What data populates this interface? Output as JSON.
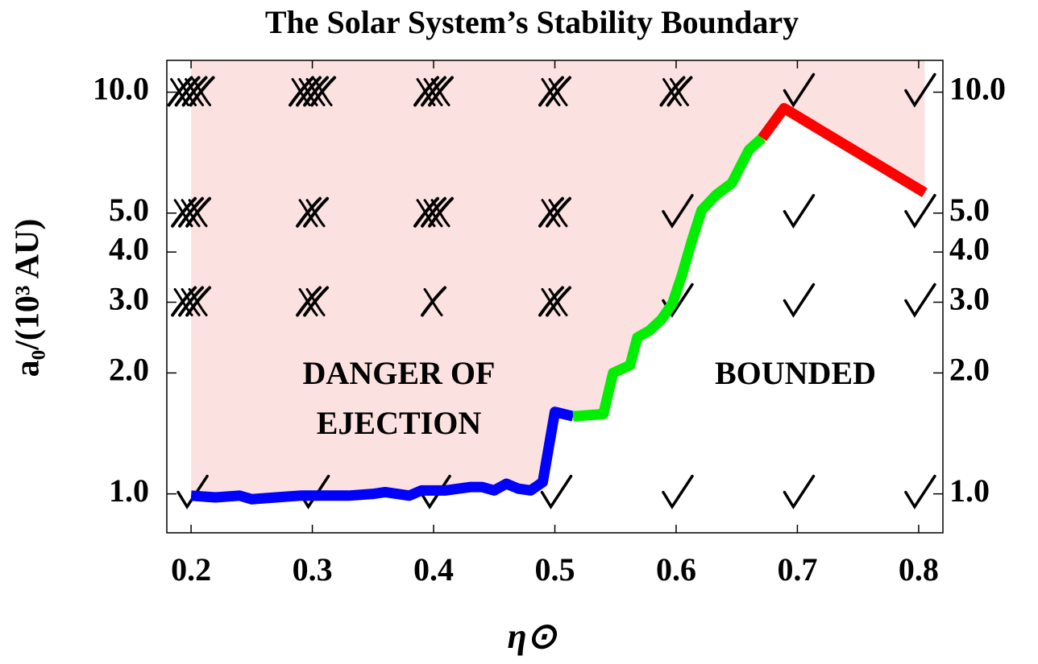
{
  "chart_data": {
    "type": "line",
    "title": "The Solar System’s Stability Boundary",
    "xlabel": "η⊙",
    "ylabel": "a₀/(10³ AU)",
    "ylog": true,
    "xlim": [
      0.18,
      0.82
    ],
    "ylim": [
      0.8,
      12
    ],
    "xticks": [
      0.2,
      0.3,
      0.4,
      0.5,
      0.6,
      0.7,
      0.8
    ],
    "yticks": [
      {
        "value": 1,
        "label": "1.0"
      },
      {
        "value": 2,
        "label": "2.0"
      },
      {
        "value": 3,
        "label": "3.0"
      },
      {
        "value": 4,
        "label": "4.0"
      },
      {
        "value": 5,
        "label": "5.0"
      },
      {
        "value": 10,
        "label": "10.0"
      }
    ],
    "region_color": "#fce1e1",
    "series": [
      {
        "color": "#0000ff",
        "x": [
          0.2,
          0.22,
          0.24,
          0.25,
          0.27,
          0.29,
          0.31,
          0.33,
          0.35,
          0.36,
          0.38,
          0.39,
          0.41,
          0.43,
          0.44,
          0.45,
          0.46,
          0.47,
          0.48,
          0.49,
          0.5,
          0.515
        ],
        "values": [
          0.99,
          0.98,
          0.99,
          0.97,
          0.98,
          0.99,
          0.99,
          0.99,
          1.0,
          1.01,
          0.99,
          1.02,
          1.02,
          1.04,
          1.04,
          1.02,
          1.06,
          1.03,
          1.02,
          1.07,
          1.6,
          1.56
        ]
      },
      {
        "color": "#00ee00",
        "x": [
          0.515,
          0.54,
          0.548,
          0.562,
          0.568,
          0.578,
          0.588,
          0.597,
          0.605,
          0.613,
          0.621,
          0.633,
          0.646,
          0.66,
          0.671
        ],
        "values": [
          1.56,
          1.58,
          2.0,
          2.09,
          2.45,
          2.55,
          2.72,
          2.98,
          3.52,
          4.27,
          5.08,
          5.55,
          5.94,
          7.18,
          7.69
        ]
      },
      {
        "color": "#ff0000",
        "x": [
          0.671,
          0.689,
          0.805
        ],
        "values": [
          7.69,
          9.12,
          5.62
        ]
      }
    ],
    "markers": {
      "x": [
        0.2,
        0.2,
        0.2,
        0.2,
        0.3,
        0.3,
        0.3,
        0.3,
        0.4,
        0.4,
        0.4,
        0.4,
        0.5,
        0.5,
        0.5,
        0.5,
        0.6,
        0.6,
        0.6,
        0.6,
        0.7,
        0.7,
        0.7,
        0.7,
        0.8,
        0.8,
        0.8,
        0.8
      ],
      "y": [
        10,
        5,
        3,
        1,
        10,
        5,
        3,
        1,
        10,
        5,
        3,
        1,
        10,
        5,
        3,
        1,
        10,
        5,
        3,
        1,
        10,
        5,
        3,
        1,
        10,
        5,
        3,
        1
      ],
      "crosses": [
        4,
        3,
        3,
        0,
        4,
        2,
        2,
        0,
        3,
        3,
        1,
        0,
        2,
        2,
        2,
        0,
        2,
        0,
        0,
        0,
        0,
        0,
        0,
        0,
        0,
        0,
        0,
        0
      ]
    },
    "annotations": [
      "DANGER OF",
      "EJECTION",
      "BOUNDED"
    ]
  }
}
